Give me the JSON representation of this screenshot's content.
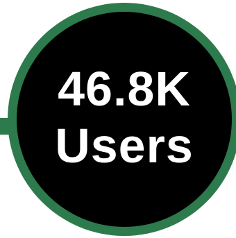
{
  "stat": {
    "value": "46.8K",
    "label": "Users"
  },
  "colors": {
    "ring": "#2d7a4d",
    "core": "#000000",
    "text": "#ffffff"
  }
}
